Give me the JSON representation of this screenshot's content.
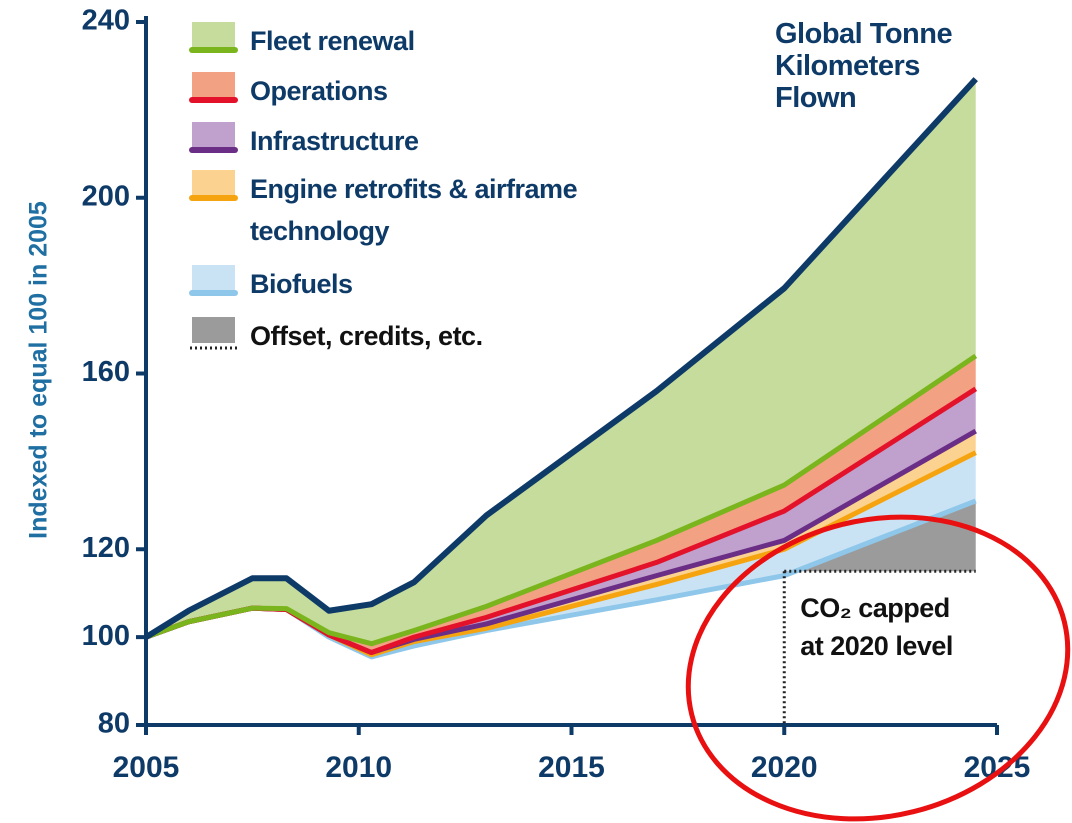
{
  "chart_data": {
    "type": "area",
    "y_label": "Indexed to equal 100 in 2005",
    "x": [
      2005,
      2006,
      2007.5,
      2008.3,
      2009.3,
      2010.3,
      2011.3,
      2013,
      2017,
      2020,
      2024.5
    ],
    "xlim": [
      2005,
      2025
    ],
    "xticks": [
      2005,
      2010,
      2015,
      2020,
      2025
    ],
    "ylim": [
      80,
      240
    ],
    "yticks": [
      80,
      100,
      120,
      160,
      200,
      240
    ],
    "series": [
      {
        "name": "Global Tonne Kilometers Flown",
        "color": "#0e3a68",
        "values": [
          100,
          106,
          113.4,
          113.4,
          106,
          107.5,
          112.5,
          127.7,
          156,
          179.4,
          227
        ]
      },
      {
        "name": "Fleet renewal",
        "color": "#7ab51d",
        "fill": "#c6dc9c",
        "values": [
          100,
          103.5,
          106.6,
          106.5,
          101,
          98.5,
          101.5,
          107,
          122,
          134.6,
          164
        ]
      },
      {
        "name": "Operations",
        "color": "#e3122a",
        "fill": "#f2a183",
        "values": [
          100,
          103.5,
          106.6,
          106.3,
          100.5,
          96.5,
          100,
          104.5,
          117,
          128.7,
          156.5
        ]
      },
      {
        "name": "Infrastructure",
        "color": "#6b2e86",
        "fill": "#c0a0cc",
        "values": [
          100,
          103.5,
          106.6,
          106.3,
          100.5,
          96.5,
          99.5,
          103,
          114,
          122,
          146.9
        ]
      },
      {
        "name": "Engine retrofits & airframe technology",
        "color": "#f5a40f",
        "fill": "#fcd290",
        "values": [
          100,
          103.5,
          106.6,
          106.3,
          100.5,
          96,
          99,
          102,
          112,
          120,
          142
        ]
      },
      {
        "name": "Biofuels",
        "color": "#8ec7ea",
        "fill": "#cae3f4",
        "values": [
          100,
          103.5,
          106.6,
          106.3,
          100,
          95.5,
          98,
          101.5,
          108.5,
          114,
          131
        ]
      },
      {
        "name": "Offset, credits, etc.",
        "color": "#222222",
        "fill": "#9b9b9b",
        "values": [
          null,
          null,
          null,
          null,
          null,
          null,
          null,
          null,
          null,
          115,
          115
        ]
      }
    ],
    "annotation": "CO₂ capped at 2020 level"
  }
}
